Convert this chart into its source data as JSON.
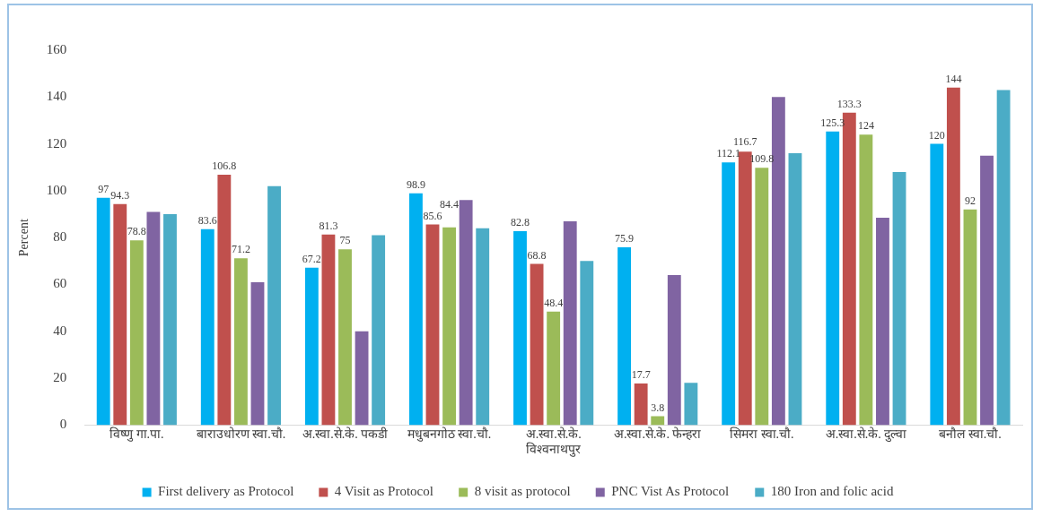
{
  "chart_data": {
    "type": "bar",
    "ylabel": "Percent",
    "categories": [
      "विष्णु गा.पा.",
      "बाराउधोरण स्वा.चौ.",
      "अ.स्वा.से.के. पकडी",
      "मधुबनगोठ स्वा.चौ.",
      "अ.स्वा.से.के.\nविश्वनाथपुर",
      "अ.स्वा.से.के. फेन्हरा",
      "सिमरा स्वा.चौ.",
      "अ.स्वा.से.के. दुल्वा",
      "बनौल स्वा.चौ."
    ],
    "series": [
      {
        "name": "First delivery as Protocol",
        "color": "#00b0f0",
        "values": [
          97,
          83.6,
          67.2,
          98.9,
          82.8,
          75.9,
          112.1,
          125.3,
          120
        ],
        "value_labels": [
          "97",
          "83.6",
          "67.2",
          "98.9",
          "82.8",
          "75.9",
          "112.1",
          "125.3",
          "120"
        ]
      },
      {
        "name": "4 Visit as Protocol",
        "color": "#c0504d",
        "values": [
          94.3,
          106.8,
          81.3,
          85.6,
          68.8,
          17.7,
          116.7,
          133.3,
          144
        ],
        "value_labels": [
          "94.3",
          "106.8",
          "81.3",
          "85.6",
          "68.8",
          "17.7",
          "116.7",
          "133.3",
          "144"
        ]
      },
      {
        "name": "8 visit as protocol",
        "color": "#9bbb59",
        "values": [
          78.8,
          71.2,
          75,
          84.4,
          48.4,
          3.8,
          109.8,
          124,
          92
        ],
        "value_labels": [
          "78.8",
          "71.2",
          "75",
          "84.4",
          "48.4",
          "3.8",
          "109.8",
          "124",
          "92"
        ]
      },
      {
        "name": "PNC Vist As Protocol",
        "color": "#8064a2",
        "values": [
          91,
          61,
          40,
          96,
          87,
          64,
          140,
          88.5,
          115
        ]
      },
      {
        "name": "180 Iron and folic acid",
        "color": "#4bacc6",
        "values": [
          90,
          102,
          81,
          84,
          70,
          18,
          116,
          108,
          143
        ]
      }
    ],
    "ylim": [
      0,
      160
    ],
    "yticks": [
      0,
      20,
      40,
      60,
      80,
      100,
      120,
      140,
      160
    ],
    "grid": false,
    "legend": "bottom"
  }
}
